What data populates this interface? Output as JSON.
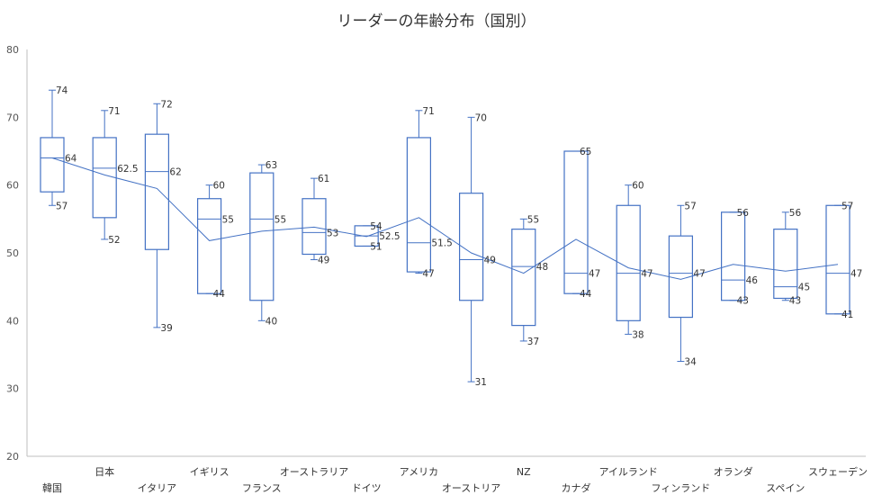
{
  "chart_data": {
    "type": "box",
    "title": "リーダーの年齢分布（国別）",
    "xlabel": "",
    "ylabel": "",
    "ylim": [
      20,
      80
    ],
    "yticks": [
      20,
      30,
      40,
      50,
      60,
      70,
      80
    ],
    "grid": false,
    "legend": "none",
    "line_series": "mean",
    "colors": {
      "box": "#4472c4",
      "mean_line": "#4472c4",
      "axis": "#bfbfbf"
    },
    "categories": [
      "韓国",
      "日本",
      "イタリア",
      "イギリス",
      "フランス",
      "オーストラリア",
      "ドイツ",
      "アメリカ",
      "オーストリア",
      "NZ",
      "カナダ",
      "アイルランド",
      "フィンランド",
      "オランダ",
      "スペイン",
      "スウェーデン"
    ],
    "boxes": [
      {
        "min": 57,
        "q1": 59,
        "median": 64,
        "q3": 67,
        "max": 74,
        "mean": 64,
        "labels": {
          "max": "74",
          "median": "64",
          "min": "57"
        }
      },
      {
        "min": 52,
        "q1": 55.2,
        "median": 62.5,
        "q3": 67,
        "max": 71,
        "mean": 61.5,
        "labels": {
          "max": "71",
          "median": "62.5",
          "min": "52"
        }
      },
      {
        "min": 39,
        "q1": 50.5,
        "median": 62,
        "q3": 67.5,
        "max": 72,
        "mean": 59.5,
        "labels": {
          "max": "72",
          "median": "62",
          "min": "39"
        }
      },
      {
        "min": 44,
        "q1": 44,
        "median": 55,
        "q3": 58,
        "max": 60,
        "mean": 51.8,
        "labels": {
          "max": "60",
          "median": "55",
          "min": "44"
        }
      },
      {
        "min": 40,
        "q1": 43,
        "median": 55,
        "q3": 61.8,
        "max": 63,
        "mean": 53.2,
        "labels": {
          "max": "63",
          "median": "55",
          "min": "40"
        }
      },
      {
        "min": 49,
        "q1": 49.8,
        "median": 53,
        "q3": 58,
        "max": 61,
        "mean": 53.8,
        "labels": {
          "max": "61",
          "median": "53",
          "min": "49"
        }
      },
      {
        "min": 51,
        "q1": 51,
        "median": 52.5,
        "q3": 54,
        "max": 54,
        "mean": 52.4,
        "labels": {
          "max": "54",
          "median": "52.5",
          "min": "51"
        }
      },
      {
        "min": 47,
        "q1": 47.2,
        "median": 51.5,
        "q3": 67,
        "max": 71,
        "mean": 55.2,
        "labels": {
          "max": "71",
          "median": "51.5",
          "min": "47"
        }
      },
      {
        "min": 31,
        "q1": 43,
        "median": 49,
        "q3": 58.8,
        "max": 70,
        "mean": 50,
        "labels": {
          "max": "70",
          "median": "49",
          "min": "31"
        }
      },
      {
        "min": 37,
        "q1": 39.3,
        "median": 48,
        "q3": 53.5,
        "max": 55,
        "mean": 47,
        "labels": {
          "max": "55",
          "median": "48",
          "min": "37"
        }
      },
      {
        "min": 44,
        "q1": 44,
        "median": 47,
        "q3": 65,
        "max": 65,
        "mean": 52,
        "labels": {
          "max": "65",
          "median": "47",
          "min": "44"
        }
      },
      {
        "min": 38,
        "q1": 40,
        "median": 47,
        "q3": 57,
        "max": 60,
        "mean": 47.8,
        "labels": {
          "max": "60",
          "median": "47",
          "min": "38"
        }
      },
      {
        "min": 34,
        "q1": 40.5,
        "median": 47,
        "q3": 52.5,
        "max": 57,
        "mean": 46.1,
        "labels": {
          "max": "57",
          "median": "47",
          "min": "34"
        }
      },
      {
        "min": 43,
        "q1": 43,
        "median": 46,
        "q3": 56,
        "max": 56,
        "mean": 48.3,
        "labels": {
          "max": "56",
          "median": "46",
          "min": "43"
        }
      },
      {
        "min": 43,
        "q1": 43.3,
        "median": 45,
        "q3": 53.5,
        "max": 56,
        "mean": 47.3,
        "labels": {
          "max": "56",
          "median": "45",
          "min": "43"
        }
      },
      {
        "min": 41,
        "q1": 41,
        "median": 47,
        "q3": 57,
        "max": 57,
        "mean": 48.3,
        "labels": {
          "max": "57",
          "median": "47",
          "min": "41"
        }
      }
    ]
  }
}
